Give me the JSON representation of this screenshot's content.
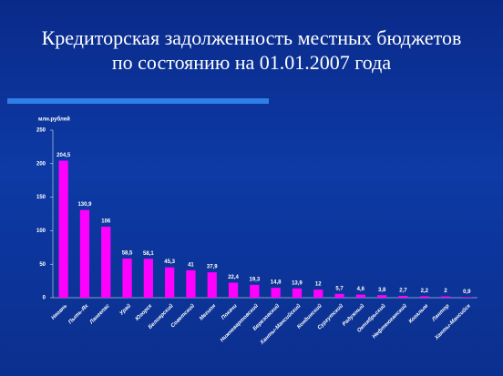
{
  "chart_data": {
    "type": "bar",
    "title": "Кредиторская задолженность местных бюджетов по состоянию на 01.01.2007 года",
    "y_label": "млн.рублей",
    "categories": [
      "Нягань",
      "Пыть-Ях",
      "Лангепас",
      "Урай",
      "Югорск",
      "Белоярский",
      "Советский",
      "Мегион",
      "Покачи",
      "Нижневартовский",
      "Березовский",
      "Ханты-Мансийский",
      "Кондинский",
      "Сургутский",
      "Радужный",
      "Октябрьский",
      "Нефтеюганский",
      "Когалым",
      "Лянтор",
      "Ханты-Мансийск"
    ],
    "values": [
      204.5,
      130.9,
      106,
      58.5,
      58.1,
      45.3,
      41,
      37.9,
      22.4,
      19.3,
      14.8,
      13.9,
      12,
      5.7,
      4.6,
      3.8,
      2.7,
      2.2,
      2,
      0.9
    ],
    "value_labels": [
      "204,5",
      "130,9",
      "106",
      "58,5",
      "58,1",
      "45,3",
      "41",
      "37,9",
      "22,4",
      "19,3",
      "14,8",
      "13,9",
      "12",
      "5,7",
      "4,6",
      "3,8",
      "2,7",
      "2,2",
      "2",
      "0,9"
    ],
    "color": "#ff00ff",
    "ylim": [
      0,
      250
    ],
    "yticks": [
      0,
      50,
      100,
      150,
      200,
      250
    ]
  }
}
